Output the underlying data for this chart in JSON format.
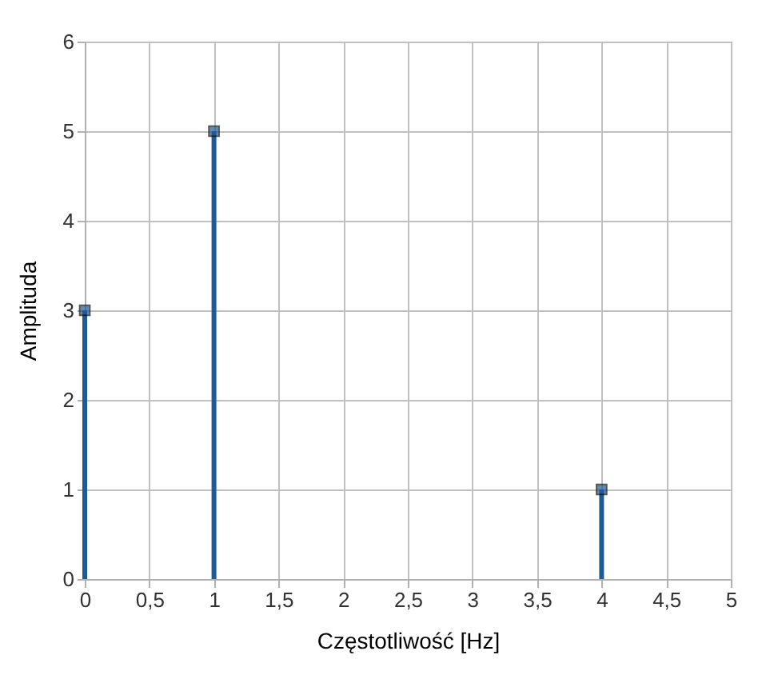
{
  "chart_data": {
    "type": "lollipop",
    "xlabel": "Częstotliwość [Hz]",
    "ylabel": "Amplituda",
    "x": [
      0,
      1,
      4
    ],
    "values": [
      3,
      5,
      1
    ],
    "color": "#1f5a96",
    "marker": "square",
    "xlim": [
      0,
      5
    ],
    "xticks": [
      0,
      {
        "value": 0.5,
        "label": "0,5"
      },
      1,
      {
        "value": 1.5,
        "label": "1,5"
      },
      2,
      {
        "value": 2.5,
        "label": "2,5"
      },
      3,
      {
        "value": 3.5,
        "label": "3,5"
      },
      4,
      {
        "value": 4.5,
        "label": "4,5"
      },
      5
    ],
    "ylim": [
      0,
      6
    ],
    "yticks": [
      0,
      1,
      2,
      3,
      4,
      5,
      6
    ],
    "grid": true
  }
}
